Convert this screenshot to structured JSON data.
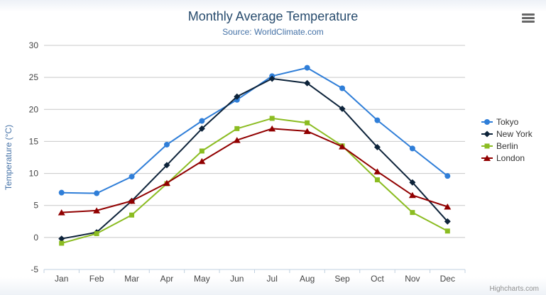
{
  "chart": {
    "title": "Monthly Average Temperature",
    "subtitle": "Source: WorldClimate.com",
    "credits": "Highcharts.com"
  },
  "chart_data": {
    "type": "line",
    "title": "Monthly Average Temperature",
    "subtitle": "Source: WorldClimate.com",
    "categories": [
      "Jan",
      "Feb",
      "Mar",
      "Apr",
      "May",
      "Jun",
      "Jul",
      "Aug",
      "Sep",
      "Oct",
      "Nov",
      "Dec"
    ],
    "xlabel": "",
    "ylabel": "Temperature (°C)",
    "ylim": [
      -5,
      30
    ],
    "ytick_interval": 5,
    "grid": true,
    "legend_position": "right",
    "series": [
      {
        "name": "Tokyo",
        "color": "#2f7ed8",
        "marker": "circle",
        "values": [
          7.0,
          6.9,
          9.5,
          14.5,
          18.2,
          21.5,
          25.2,
          26.5,
          23.3,
          18.3,
          13.9,
          9.6
        ]
      },
      {
        "name": "New York",
        "color": "#0d233a",
        "marker": "diamond",
        "values": [
          -0.2,
          0.8,
          5.7,
          11.3,
          17.0,
          22.0,
          24.8,
          24.1,
          20.1,
          14.1,
          8.6,
          2.5
        ]
      },
      {
        "name": "Berlin",
        "color": "#8bbc21",
        "marker": "square",
        "values": [
          -0.9,
          0.6,
          3.5,
          8.4,
          13.5,
          17.0,
          18.6,
          17.9,
          14.3,
          9.0,
          3.9,
          1.0
        ]
      },
      {
        "name": "London",
        "color": "#910000",
        "marker": "triangle",
        "values": [
          3.9,
          4.2,
          5.7,
          8.5,
          11.9,
          15.2,
          17.0,
          16.6,
          14.2,
          10.3,
          6.6,
          4.8
        ]
      }
    ]
  }
}
